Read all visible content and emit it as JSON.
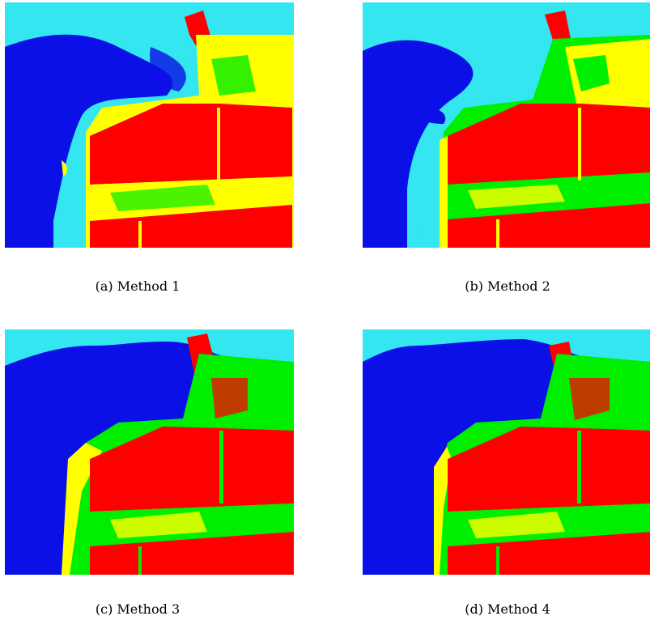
{
  "figure": {
    "colors": {
      "water_shallow": "#33e6f0",
      "water_deep": "#0a10e6",
      "urban": "#ff0000",
      "vegetation": "#00ee00",
      "bare": "#ffff00"
    },
    "panels": [
      {
        "id": "a",
        "caption": "(a)  Method 1"
      },
      {
        "id": "b",
        "caption": "(b)  Method 2"
      },
      {
        "id": "c",
        "caption": "(c)  Method 3"
      },
      {
        "id": "d",
        "caption": "(d)  Method 4"
      }
    ]
  }
}
